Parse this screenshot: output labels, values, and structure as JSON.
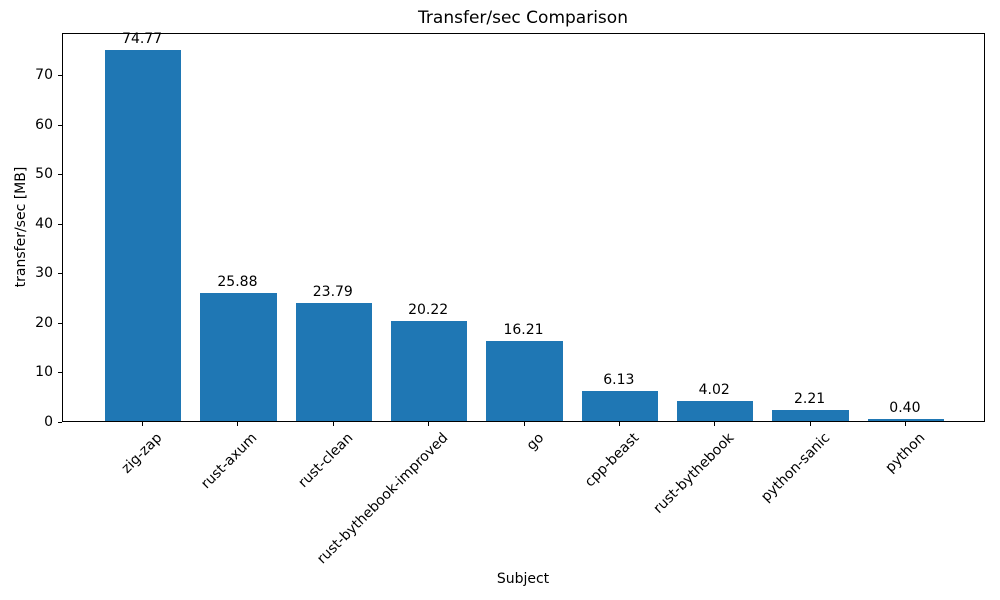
{
  "chart_data": {
    "type": "bar",
    "title": "Transfer/sec Comparison",
    "xlabel": "Subject",
    "ylabel": "transfer/sec [MB]",
    "categories": [
      "zig-zap",
      "rust-axum",
      "rust-clean",
      "rust-bythebook-improved",
      "go",
      "cpp-beast",
      "rust-bythebook",
      "python-sanic",
      "python"
    ],
    "values": [
      74.77,
      25.88,
      23.79,
      20.22,
      16.21,
      6.13,
      4.02,
      2.21,
      0.4
    ],
    "value_labels": [
      "74.77",
      "25.88",
      "23.79",
      "20.22",
      "16.21",
      "6.13",
      "4.02",
      "2.21",
      "0.40"
    ],
    "yticks": [
      0,
      10,
      20,
      30,
      40,
      50,
      60,
      70
    ],
    "ylim": [
      0,
      78.5
    ],
    "bar_color": "#1f77b4",
    "grid": false,
    "legend_position": "none",
    "xtick_rotation_deg": 45
  }
}
